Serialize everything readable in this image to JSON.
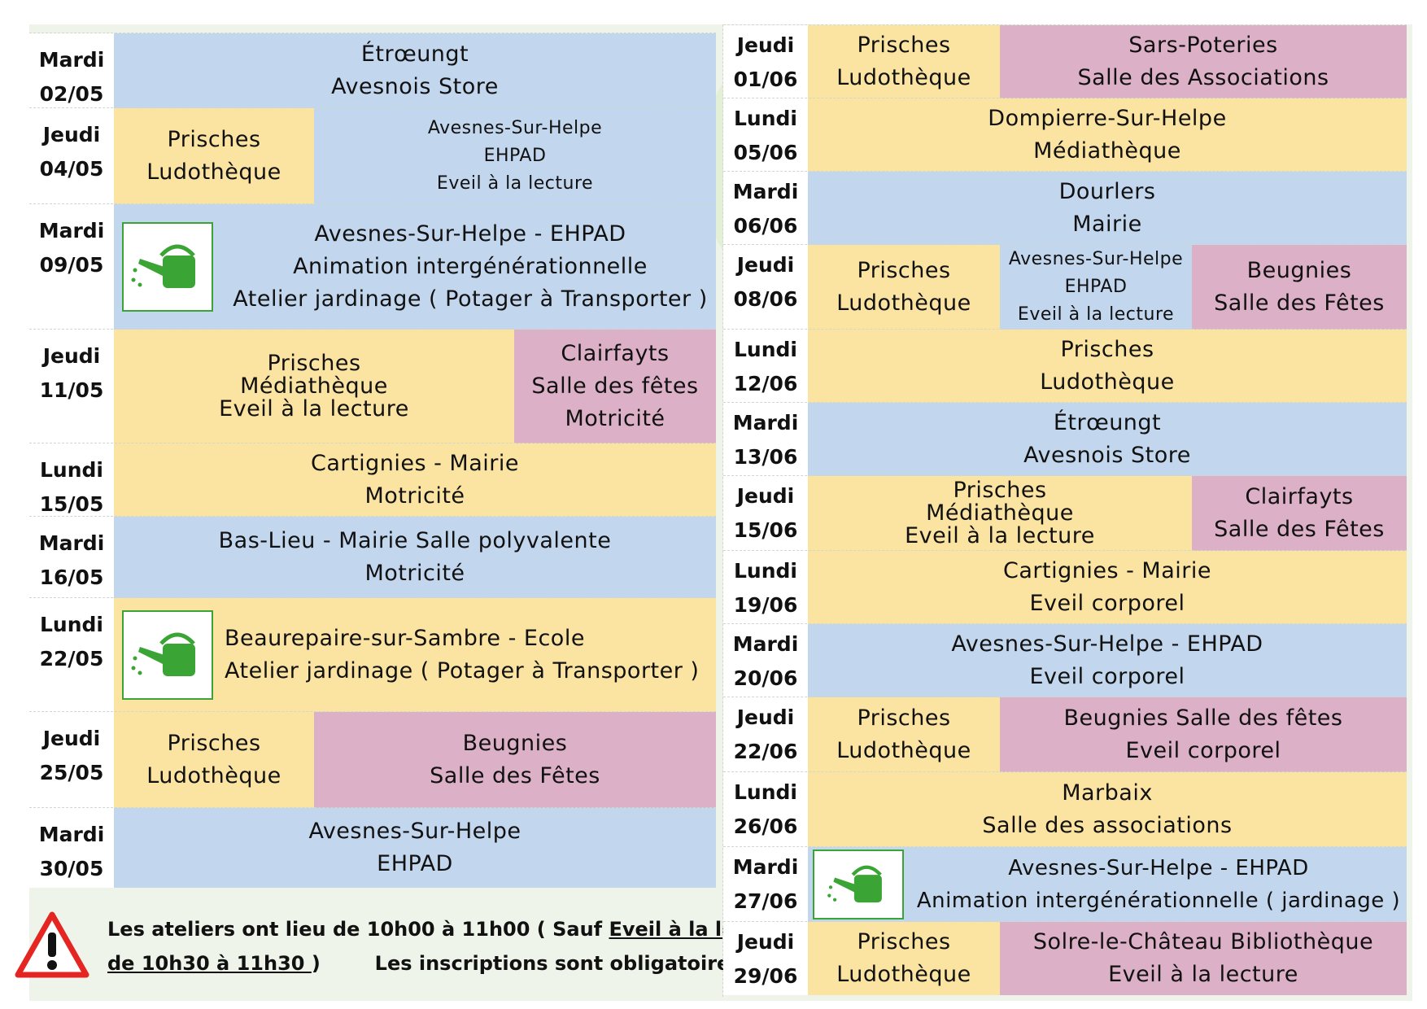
{
  "left_rows": [
    {
      "day": "Mardi",
      "date": "02/05",
      "cells": [
        {
          "lines": [
            "Étrœungt",
            "Avesnois Store"
          ],
          "color": "blue"
        }
      ]
    },
    {
      "day": "Jeudi",
      "date": "04/05",
      "cells": [
        {
          "lines": [
            "Prisches",
            "Ludothèque"
          ],
          "color": "yellow"
        },
        {
          "lines": [
            "Avesnes-Sur-Helpe",
            "EHPAD",
            "Eveil à la lecture"
          ],
          "color": "blue"
        }
      ]
    },
    {
      "day": "Mardi",
      "date": "09/05",
      "icon": "watering-can-icon",
      "cells": [
        {
          "lines": [
            "Avesnes-Sur-Helpe - EHPAD",
            "Animation intergénérationnelle",
            "Atelier jardinage ( Potager à Transporter )"
          ],
          "color": "blue"
        }
      ]
    },
    {
      "day": "Jeudi",
      "date": "11/05",
      "cells": [
        {
          "lines": [
            "Prisches",
            "Médiathèque",
            "Eveil à la lecture"
          ],
          "color": "yellow"
        },
        {
          "lines": [
            "Clairfayts",
            "Salle des fêtes",
            "Motricité"
          ],
          "color": "pink"
        }
      ]
    },
    {
      "day": "Lundi",
      "date": "15/05",
      "cells": [
        {
          "lines": [
            "Cartignies  - Mairie",
            "Motricité"
          ],
          "color": "yellow"
        }
      ]
    },
    {
      "day": "Mardi",
      "date": "16/05",
      "cells": [
        {
          "lines": [
            "Bas-Lieu  -  Mairie Salle polyvalente",
            "Motricité"
          ],
          "color": "blue"
        }
      ]
    },
    {
      "day": "Lundi",
      "date": "22/05",
      "icon": "watering-can-icon",
      "cells": [
        {
          "lines": [
            "Beaurepaire-sur-Sambre  -  Ecole",
            "Atelier jardinage ( Potager à Transporter )"
          ],
          "color": "yellow"
        }
      ]
    },
    {
      "day": "Jeudi",
      "date": "25/05",
      "cells": [
        {
          "lines": [
            "Prisches",
            "Ludothèque"
          ],
          "color": "yellow"
        },
        {
          "lines": [
            "Beugnies",
            "Salle des Fêtes"
          ],
          "color": "pink"
        }
      ]
    },
    {
      "day": "Mardi",
      "date": "30/05",
      "cells": [
        {
          "lines": [
            "Avesnes-Sur-Helpe",
            "EHPAD"
          ],
          "color": "blue"
        }
      ]
    }
  ],
  "right_rows": [
    {
      "day": "Jeudi",
      "date": "01/06",
      "cells": [
        {
          "lines": [
            "Prisches",
            "Ludothèque"
          ],
          "color": "yellow"
        },
        {
          "lines": [
            "Sars-Poteries",
            "Salle des Associations"
          ],
          "color": "pink"
        }
      ]
    },
    {
      "day": "Lundi",
      "date": "05/06",
      "cells": [
        {
          "lines": [
            "Dompierre-Sur-Helpe",
            "Médiathèque"
          ],
          "color": "yellow"
        }
      ]
    },
    {
      "day": "Mardi",
      "date": "06/06",
      "cells": [
        {
          "lines": [
            "Dourlers",
            "Mairie"
          ],
          "color": "blue"
        }
      ]
    },
    {
      "day": "Jeudi",
      "date": "08/06",
      "cells": [
        {
          "lines": [
            "Prisches",
            "Ludothèque"
          ],
          "color": "yellow"
        },
        {
          "lines": [
            "Avesnes-Sur-Helpe",
            "EHPAD",
            "Eveil à la lecture"
          ],
          "color": "blue"
        },
        {
          "lines": [
            "Beugnies",
            "Salle des Fêtes"
          ],
          "color": "pink"
        }
      ]
    },
    {
      "day": "Lundi",
      "date": "12/06",
      "cells": [
        {
          "lines": [
            "Prisches",
            "Ludothèque"
          ],
          "color": "yellow"
        }
      ]
    },
    {
      "day": "Mardi",
      "date": "13/06",
      "cells": [
        {
          "lines": [
            "Étrœungt",
            "Avesnois Store"
          ],
          "color": "blue"
        }
      ]
    },
    {
      "day": "Jeudi",
      "date": "15/06",
      "cells": [
        {
          "lines": [
            "Prisches",
            "Médiathèque",
            "Eveil à la lecture"
          ],
          "color": "yellow"
        },
        {
          "lines": [
            "Clairfayts",
            "Salle des Fêtes"
          ],
          "color": "pink"
        }
      ]
    },
    {
      "day": "Lundi",
      "date": "19/06",
      "cells": [
        {
          "lines": [
            "Cartignies  - Mairie",
            "Eveil corporel"
          ],
          "color": "yellow"
        }
      ]
    },
    {
      "day": "Mardi",
      "date": "20/06",
      "cells": [
        {
          "lines": [
            "Avesnes-Sur-Helpe - EHPAD",
            "Eveil corporel"
          ],
          "color": "blue"
        }
      ]
    },
    {
      "day": "Jeudi",
      "date": "22/06",
      "cells": [
        {
          "lines": [
            "Prisches",
            "Ludothèque"
          ],
          "color": "yellow"
        },
        {
          "lines": [
            "Beugnies Salle des fêtes",
            "Eveil corporel"
          ],
          "color": "pink"
        }
      ]
    },
    {
      "day": "Lundi",
      "date": "26/06",
      "cells": [
        {
          "lines": [
            "Marbaix",
            "Salle des associations"
          ],
          "color": "yellow"
        }
      ]
    },
    {
      "day": "Mardi",
      "date": "27/06",
      "icon": "watering-can-icon",
      "cells": [
        {
          "lines": [
            "Avesnes-Sur-Helpe - EHPAD",
            "Animation intergénérationnelle ( jardinage )"
          ],
          "color": "blue"
        }
      ]
    },
    {
      "day": "Jeudi",
      "date": "29/06",
      "cells": [
        {
          "lines": [
            "Prisches",
            "Ludothèque"
          ],
          "color": "yellow"
        },
        {
          "lines": [
            "Solre-le-Château   Bibliothèque",
            "Eveil à la lecture"
          ],
          "color": "pink"
        }
      ]
    }
  ],
  "notice": {
    "icon": "warning-icon",
    "part1": "Les ateliers ont lieu de 10h00 à 11h00 ( Sauf ",
    "underlined1": "Eveil à la lecture",
    "underlined2": "de 10h30 à 11h30 ",
    "part2": ")        Les inscriptions sont obligatoires"
  },
  "colors": {
    "blue": "#c2d6ee",
    "yellow": "#fbe4a1",
    "pink": "#dcb0c6",
    "icon_green": "#3aa535"
  }
}
